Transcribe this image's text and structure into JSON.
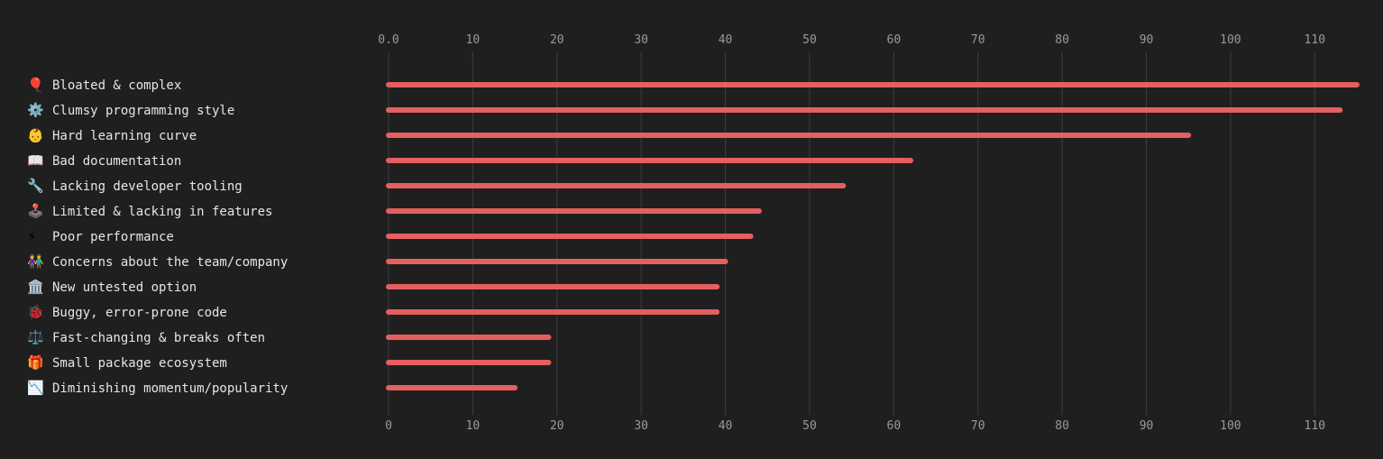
{
  "chart_data": {
    "type": "bar",
    "orientation": "horizontal",
    "categories": [
      {
        "icon": "🎈",
        "icon_name": "balloon-icon",
        "label": "Bloated & complex"
      },
      {
        "icon": "⚙️",
        "icon_name": "gear-icon",
        "label": "Clumsy programming style"
      },
      {
        "icon": "👶",
        "icon_name": "baby-icon",
        "label": "Hard learning curve"
      },
      {
        "icon": "📖",
        "icon_name": "book-icon",
        "label": "Bad documentation"
      },
      {
        "icon": "🔧",
        "icon_name": "wrench-icon",
        "label": "Lacking developer tooling"
      },
      {
        "icon": "🕹️",
        "icon_name": "joystick-icon",
        "label": "Limited & lacking in features"
      },
      {
        "icon": "⚡",
        "icon_name": "lightning-icon",
        "label": "Poor performance"
      },
      {
        "icon": "👫",
        "icon_name": "people-icon",
        "label": "Concerns about the team/company"
      },
      {
        "icon": "🏛️",
        "icon_name": "building-icon",
        "label": "New untested option"
      },
      {
        "icon": "🐞",
        "icon_name": "bug-icon",
        "label": "Buggy, error-prone code"
      },
      {
        "icon": "⚖️",
        "icon_name": "scales-icon",
        "label": "Fast-changing & breaks often"
      },
      {
        "icon": "🎁",
        "icon_name": "gift-icon",
        "label": "Small package ecosystem"
      },
      {
        "icon": "📉",
        "icon_name": "chart-decreasing-icon",
        "label": "Diminishing momentum/popularity"
      }
    ],
    "values": [
      115,
      113,
      95,
      62,
      54,
      44,
      43,
      40,
      39,
      39,
      19,
      19,
      15
    ],
    "xlim": [
      0,
      115
    ],
    "top_ticks": [
      "0.0",
      "10",
      "20",
      "30",
      "40",
      "50",
      "60",
      "70",
      "80",
      "90",
      "100",
      "110"
    ],
    "bottom_ticks": [
      "0",
      "10",
      "20",
      "30",
      "40",
      "50",
      "60",
      "70",
      "80",
      "90",
      "100",
      "110"
    ],
    "tick_values": [
      0,
      10,
      20,
      30,
      40,
      50,
      60,
      70,
      80,
      90,
      100,
      110
    ],
    "grid": true,
    "colors": {
      "background": "#1f1f1f",
      "bar": "#e45f5f",
      "grid": "#3d3d3d",
      "tick_text": "#9a9a9a",
      "label_text": "#e6e6e6"
    }
  }
}
